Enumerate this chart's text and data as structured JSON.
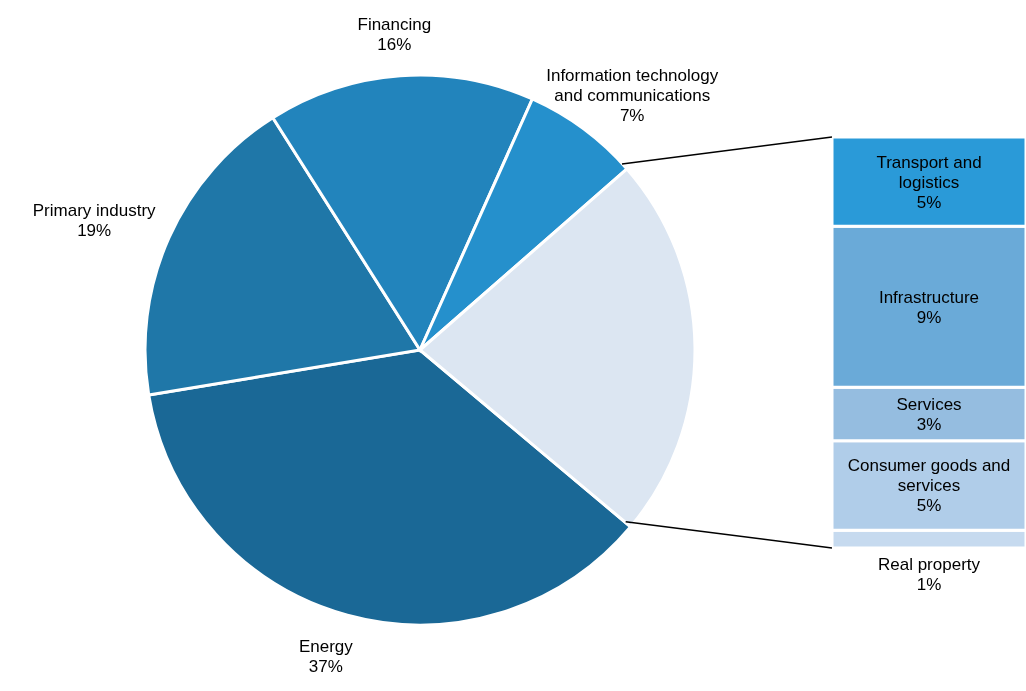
{
  "chart_data": [
    {
      "type": "pie",
      "categories": [
        "Energy",
        "Primary industry",
        "Financing",
        "Information technology and communications",
        null
      ],
      "values": [
        37,
        19,
        16,
        7,
        23
      ],
      "value_labels": [
        "37%",
        "19%",
        "16%",
        "7%",
        null
      ],
      "colors": [
        "#1a6896",
        "#1f77a8",
        "#2284bc",
        "#2590cc",
        "#dce6f2"
      ],
      "legend": false
    },
    {
      "type": "bar",
      "stacked": true,
      "categories": [
        null
      ],
      "legend": false,
      "series": [
        {
          "name": "Real property",
          "color": "#c6daef",
          "values": [
            1
          ],
          "value_labels": [
            "1%"
          ]
        },
        {
          "name": "Consumer goods and services",
          "color": "#b0cde9",
          "values": [
            5
          ],
          "value_labels": [
            "5%"
          ]
        },
        {
          "name": "Services",
          "color": "#95bde0",
          "values": [
            3
          ],
          "value_labels": [
            "3%"
          ]
        },
        {
          "name": "Infrastructure",
          "color": "#6aaad8",
          "values": [
            9
          ],
          "value_labels": [
            "9%"
          ]
        },
        {
          "name": "Transport and logistics",
          "color": "#2a9ad8",
          "values": [
            5
          ],
          "value_labels": [
            "5%"
          ]
        }
      ]
    }
  ]
}
